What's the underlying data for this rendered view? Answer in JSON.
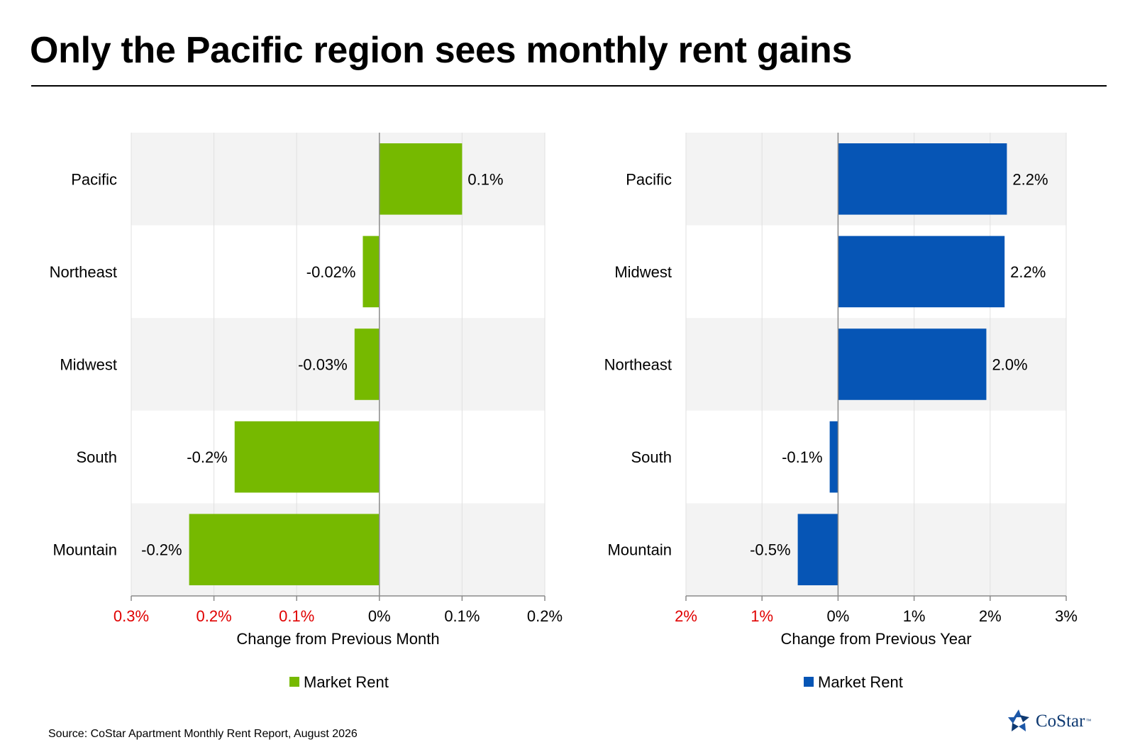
{
  "title": "Only the Pacific region sees monthly rent gains",
  "source": "Source: CoStar Apartment Monthly Rent Report, August 2026",
  "logo": {
    "text": "CoStar",
    "tm": "™",
    "icon": "costar-star-icon"
  },
  "colors": {
    "monthly_bar": "#76b900",
    "yearly_bar": "#0655b5",
    "negative_tick": "#e00000",
    "band": "#f3f3f3",
    "grid": "#e0e0e0"
  },
  "chart_data": [
    {
      "type": "bar",
      "orientation": "horizontal",
      "categories": [
        "Pacific",
        "Northeast",
        "Midwest",
        "South",
        "Mountain"
      ],
      "series": [
        {
          "name": "Market Rent",
          "values": [
            0.1,
            -0.02,
            -0.03,
            -0.175,
            -0.23
          ],
          "labels": [
            "0.1%",
            "-0.02%",
            "-0.03%",
            "-0.2%",
            "-0.2%"
          ]
        }
      ],
      "xlabel": "Change from Previous Month",
      "xlim": [
        -0.3,
        0.2
      ],
      "ticks": [
        -0.3,
        -0.2,
        -0.1,
        0,
        0.1,
        0.2
      ],
      "tick_labels": [
        "0.3%",
        "0.2%",
        "0.1%",
        "0%",
        "0.1%",
        "0.2%"
      ],
      "negative_ticks_red": true,
      "grid": true,
      "legend": "bottom"
    },
    {
      "type": "bar",
      "orientation": "horizontal",
      "categories": [
        "Pacific",
        "Midwest",
        "Northeast",
        "South",
        "Mountain"
      ],
      "series": [
        {
          "name": "Market Rent",
          "values": [
            2.22,
            2.19,
            1.95,
            -0.11,
            -0.53
          ],
          "labels": [
            "2.2%",
            "2.2%",
            "2.0%",
            "-0.1%",
            "-0.5%"
          ]
        }
      ],
      "xlabel": "Change from Previous Year",
      "xlim": [
        -2,
        3
      ],
      "ticks": [
        -2,
        -1,
        0,
        1,
        2,
        3
      ],
      "tick_labels": [
        "2%",
        "1%",
        "0%",
        "1%",
        "2%",
        "3%"
      ],
      "negative_ticks_red": true,
      "grid": true,
      "legend": "bottom"
    }
  ]
}
